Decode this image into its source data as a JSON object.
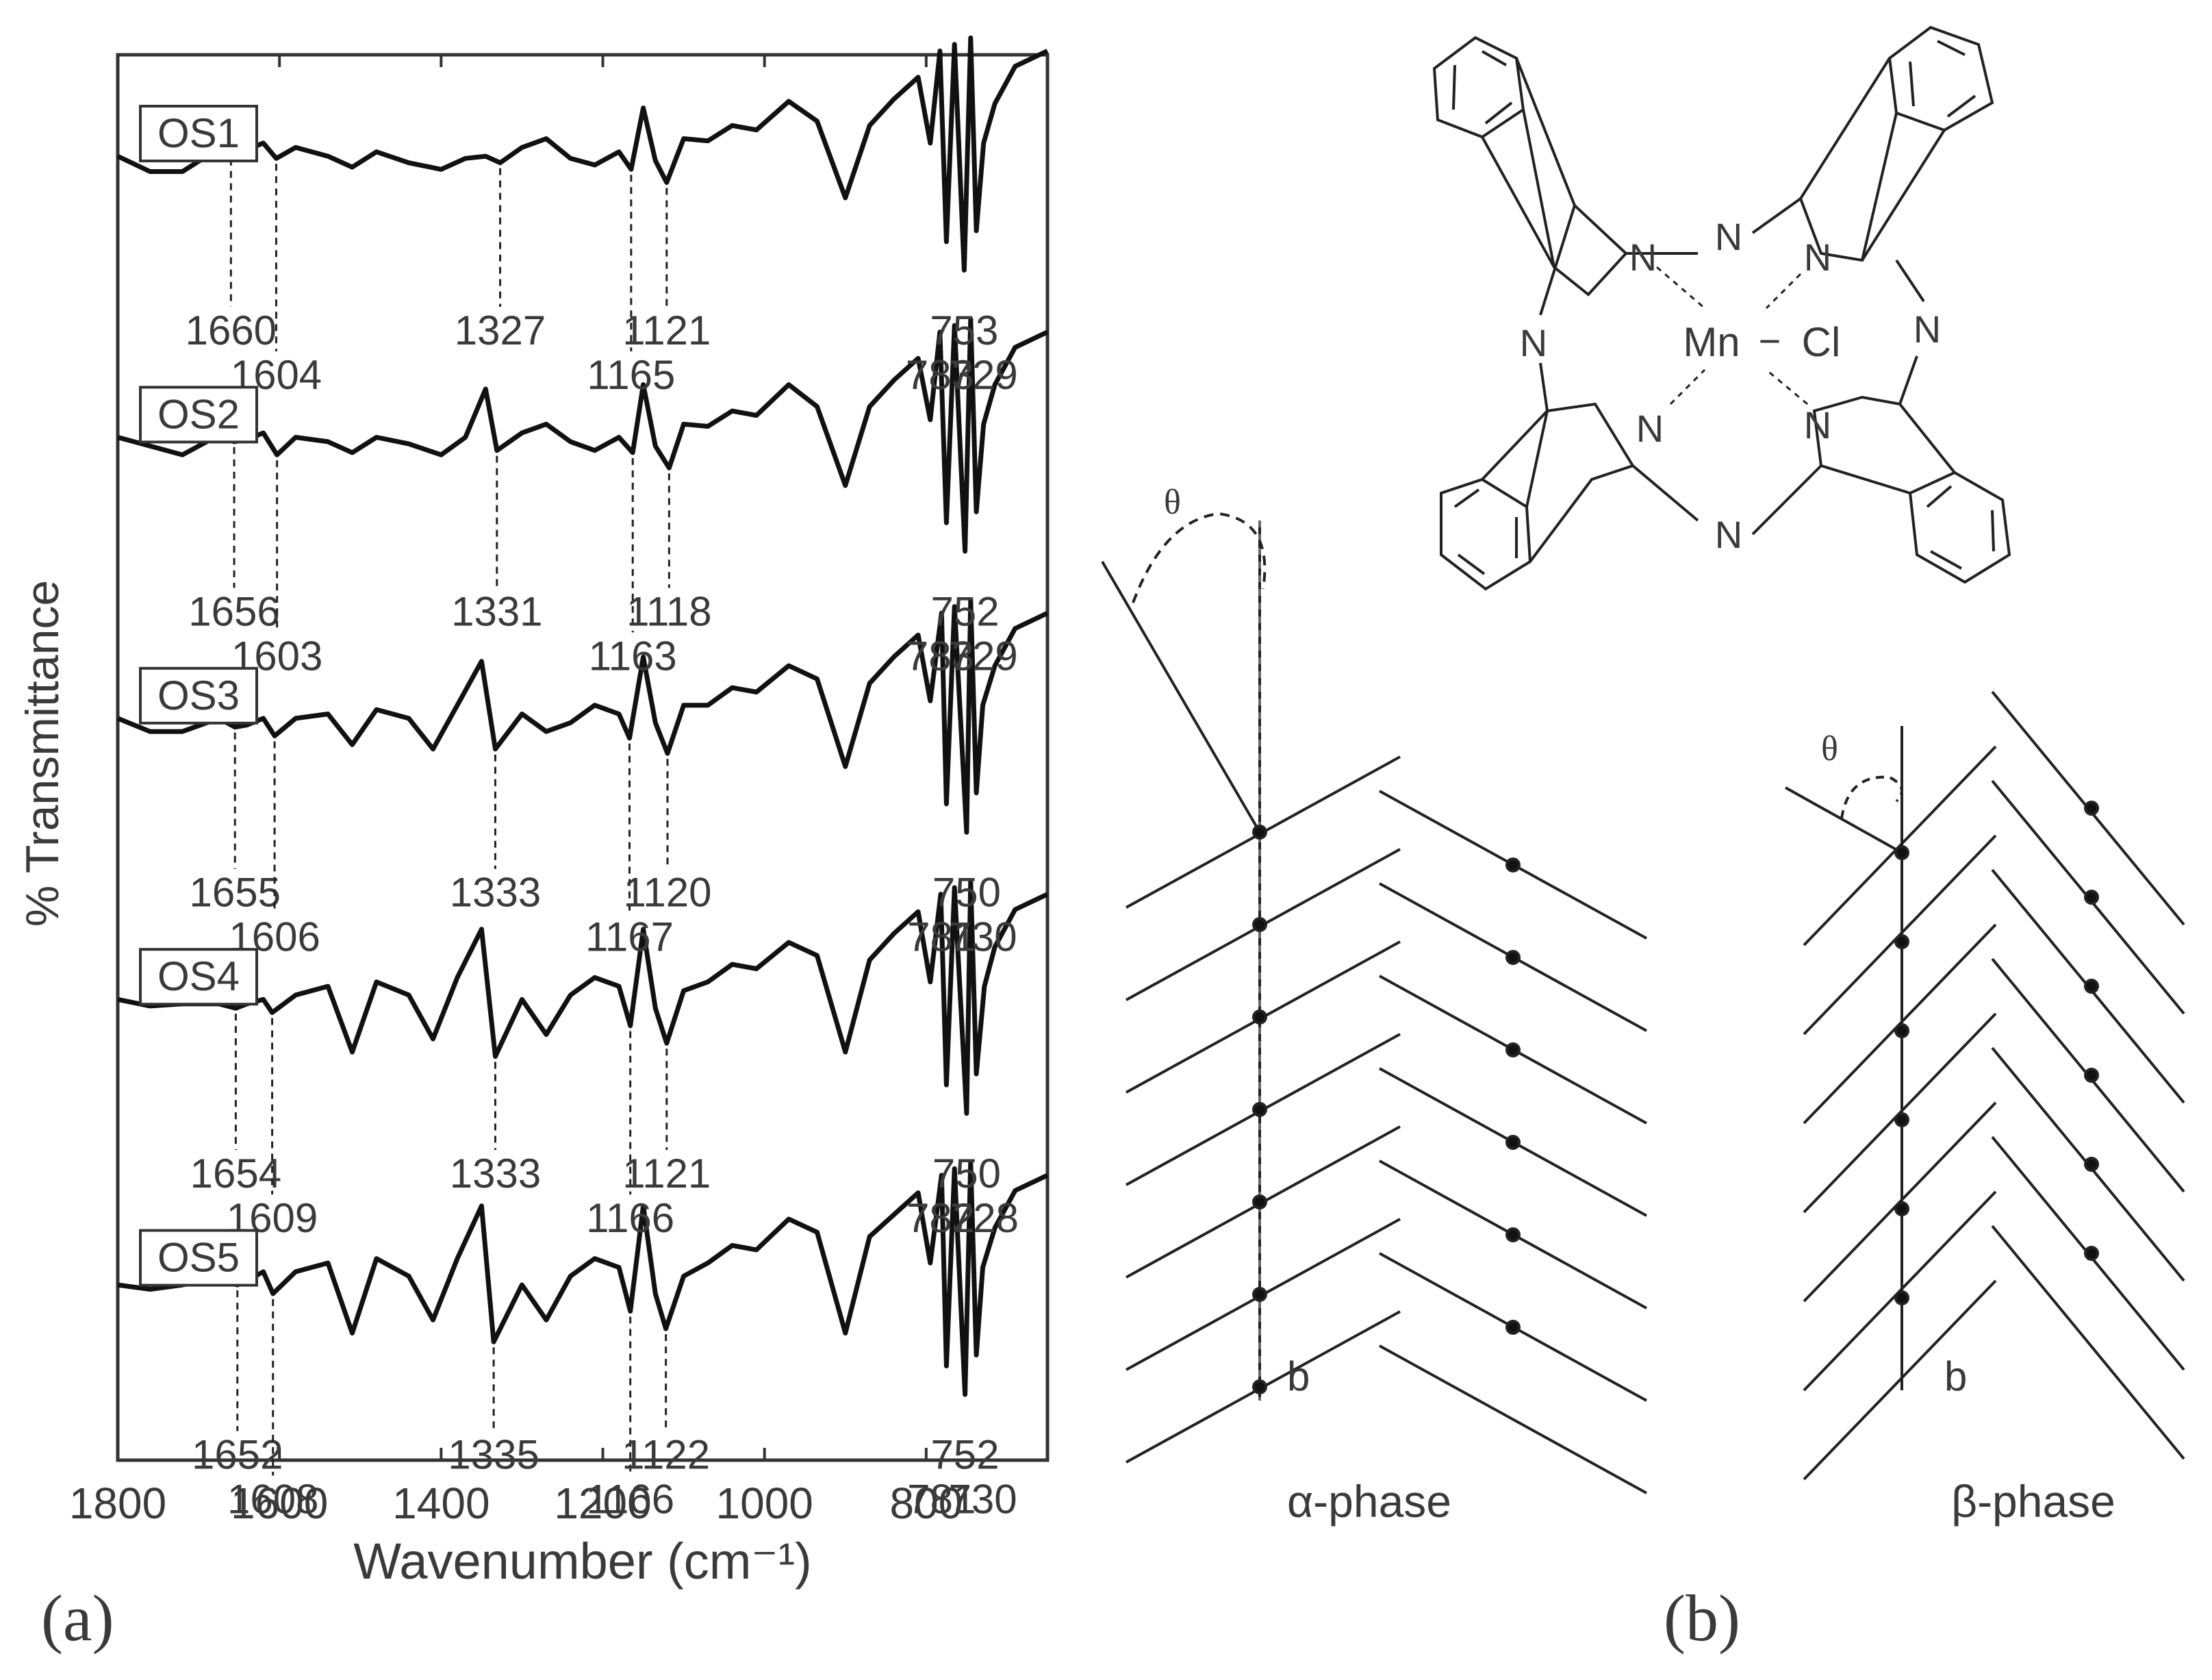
{
  "panel_a": {
    "label": "(a)",
    "ylabel": "% Transmittance",
    "xlabel": "Wavenumber (cm⁻¹)"
  },
  "panel_b": {
    "label": "(b)",
    "alpha_label": "α-phase",
    "beta_label": "β-phase",
    "theta_symbol": "θ",
    "axis_b": "b",
    "molecule": {
      "N_atom": "N",
      "metal": "Mn",
      "bond": "−",
      "ligand": "Cl"
    }
  },
  "chart_data": {
    "type": "line",
    "xlabel": "Wavenumber (cm⁻¹)",
    "ylabel": "% Transmittance",
    "xlim": [
      1800,
      650
    ],
    "x_reversed": true,
    "x_ticks": [
      1800,
      1600,
      1400,
      1200,
      1000,
      800
    ],
    "stacked_offset": true,
    "series": [
      {
        "name": "OS1",
        "x": [
          1800,
          1760,
          1720,
          1690,
          1675,
          1660,
          1640,
          1620,
          1604,
          1580,
          1540,
          1510,
          1480,
          1440,
          1400,
          1370,
          1345,
          1327,
          1300,
          1270,
          1240,
          1210,
          1180,
          1165,
          1150,
          1135,
          1121,
          1100,
          1070,
          1040,
          1010,
          970,
          935,
          900,
          870,
          840,
          810,
          795,
          783,
          775,
          765,
          753,
          745,
          738,
          729,
          715,
          690,
          650
        ],
        "y": [
          0.64,
          0.57,
          0.57,
          0.64,
          0.7,
          0.71,
          0.67,
          0.7,
          0.63,
          0.68,
          0.64,
          0.59,
          0.66,
          0.61,
          0.58,
          0.63,
          0.64,
          0.61,
          0.68,
          0.72,
          0.63,
          0.6,
          0.66,
          0.58,
          0.86,
          0.62,
          0.52,
          0.72,
          0.71,
          0.78,
          0.76,
          0.89,
          0.8,
          0.45,
          0.78,
          0.9,
          1.0,
          0.7,
          1.12,
          0.25,
          1.15,
          0.12,
          1.18,
          0.3,
          0.7,
          0.88,
          1.05,
          1.12
        ],
        "annotations": [
          1660,
          1604,
          1327,
          1165,
          1121,
          783,
          753,
          729
        ]
      },
      {
        "name": "OS2",
        "x": [
          1800,
          1760,
          1720,
          1690,
          1675,
          1656,
          1640,
          1620,
          1603,
          1580,
          1540,
          1510,
          1480,
          1440,
          1400,
          1370,
          1345,
          1331,
          1300,
          1270,
          1240,
          1210,
          1180,
          1163,
          1150,
          1135,
          1118,
          1100,
          1070,
          1040,
          1010,
          970,
          935,
          900,
          870,
          840,
          810,
          795,
          783,
          775,
          765,
          752,
          745,
          738,
          729,
          715,
          690,
          650
        ],
        "y": [
          0.64,
          0.6,
          0.56,
          0.62,
          0.66,
          0.62,
          0.63,
          0.66,
          0.56,
          0.64,
          0.62,
          0.57,
          0.64,
          0.61,
          0.56,
          0.64,
          0.86,
          0.58,
          0.66,
          0.7,
          0.62,
          0.58,
          0.64,
          0.57,
          0.88,
          0.6,
          0.5,
          0.7,
          0.69,
          0.76,
          0.74,
          0.88,
          0.78,
          0.42,
          0.78,
          0.9,
          1.0,
          0.72,
          1.12,
          0.25,
          1.15,
          0.12,
          1.18,
          0.3,
          0.7,
          0.88,
          1.05,
          1.12
        ],
        "annotations": [
          1656,
          1603,
          1331,
          1163,
          1118,
          783,
          752,
          729
        ]
      },
      {
        "name": "OS3",
        "x": [
          1800,
          1760,
          1720,
          1690,
          1675,
          1655,
          1640,
          1620,
          1606,
          1580,
          1540,
          1510,
          1480,
          1440,
          1410,
          1380,
          1350,
          1333,
          1300,
          1270,
          1240,
          1210,
          1180,
          1167,
          1150,
          1135,
          1120,
          1100,
          1070,
          1040,
          1010,
          970,
          935,
          900,
          870,
          840,
          810,
          795,
          781,
          775,
          765,
          750,
          745,
          738,
          730,
          715,
          690,
          650
        ],
        "y": [
          0.64,
          0.58,
          0.58,
          0.62,
          0.64,
          0.6,
          0.61,
          0.64,
          0.56,
          0.64,
          0.66,
          0.52,
          0.68,
          0.64,
          0.5,
          0.7,
          0.9,
          0.5,
          0.66,
          0.58,
          0.62,
          0.7,
          0.66,
          0.55,
          0.92,
          0.62,
          0.48,
          0.7,
          0.7,
          0.78,
          0.76,
          0.88,
          0.82,
          0.42,
          0.8,
          0.92,
          1.02,
          0.72,
          1.12,
          0.25,
          1.15,
          0.12,
          1.18,
          0.3,
          0.7,
          0.88,
          1.05,
          1.12
        ],
        "annotations": [
          1655,
          1606,
          1333,
          1167,
          1120,
          781,
          750,
          730
        ]
      },
      {
        "name": "OS4",
        "x": [
          1800,
          1760,
          1720,
          1690,
          1675,
          1654,
          1640,
          1620,
          1609,
          1580,
          1540,
          1510,
          1480,
          1440,
          1410,
          1380,
          1350,
          1333,
          1300,
          1270,
          1240,
          1210,
          1180,
          1166,
          1150,
          1135,
          1121,
          1100,
          1070,
          1040,
          1010,
          970,
          935,
          900,
          870,
          840,
          810,
          795,
          782,
          775,
          765,
          750,
          745,
          738,
          728,
          715,
          690,
          650
        ],
        "y": [
          0.64,
          0.61,
          0.62,
          0.62,
          0.62,
          0.6,
          0.62,
          0.64,
          0.58,
          0.66,
          0.7,
          0.4,
          0.72,
          0.66,
          0.46,
          0.74,
          0.96,
          0.38,
          0.64,
          0.48,
          0.66,
          0.74,
          0.7,
          0.52,
          0.96,
          0.6,
          0.44,
          0.68,
          0.72,
          0.8,
          0.78,
          0.9,
          0.84,
          0.4,
          0.82,
          0.94,
          1.04,
          0.72,
          1.12,
          0.25,
          1.15,
          0.12,
          1.18,
          0.3,
          0.7,
          0.88,
          1.05,
          1.12
        ],
        "annotations": [
          1654,
          1609,
          1333,
          1166,
          1121,
          782,
          750,
          728
        ]
      },
      {
        "name": "OS5",
        "x": [
          1800,
          1760,
          1720,
          1690,
          1675,
          1652,
          1640,
          1620,
          1608,
          1580,
          1540,
          1510,
          1480,
          1440,
          1410,
          1380,
          1350,
          1335,
          1300,
          1270,
          1240,
          1210,
          1180,
          1166,
          1150,
          1135,
          1122,
          1100,
          1070,
          1040,
          1010,
          970,
          935,
          900,
          870,
          840,
          810,
          795,
          781,
          775,
          765,
          752,
          745,
          738,
          730,
          715,
          690,
          650
        ],
        "y": [
          0.62,
          0.6,
          0.62,
          0.64,
          0.64,
          0.62,
          0.64,
          0.68,
          0.58,
          0.68,
          0.72,
          0.4,
          0.74,
          0.66,
          0.46,
          0.74,
          0.98,
          0.36,
          0.62,
          0.46,
          0.66,
          0.74,
          0.7,
          0.5,
          0.98,
          0.58,
          0.42,
          0.66,
          0.72,
          0.8,
          0.78,
          0.92,
          0.86,
          0.4,
          0.84,
          0.94,
          1.04,
          0.72,
          1.12,
          0.25,
          1.15,
          0.12,
          1.18,
          0.3,
          0.7,
          0.88,
          1.05,
          1.12
        ],
        "annotations": [
          1652,
          1608,
          1335,
          1166,
          1122,
          781,
          752,
          730
        ]
      }
    ]
  }
}
